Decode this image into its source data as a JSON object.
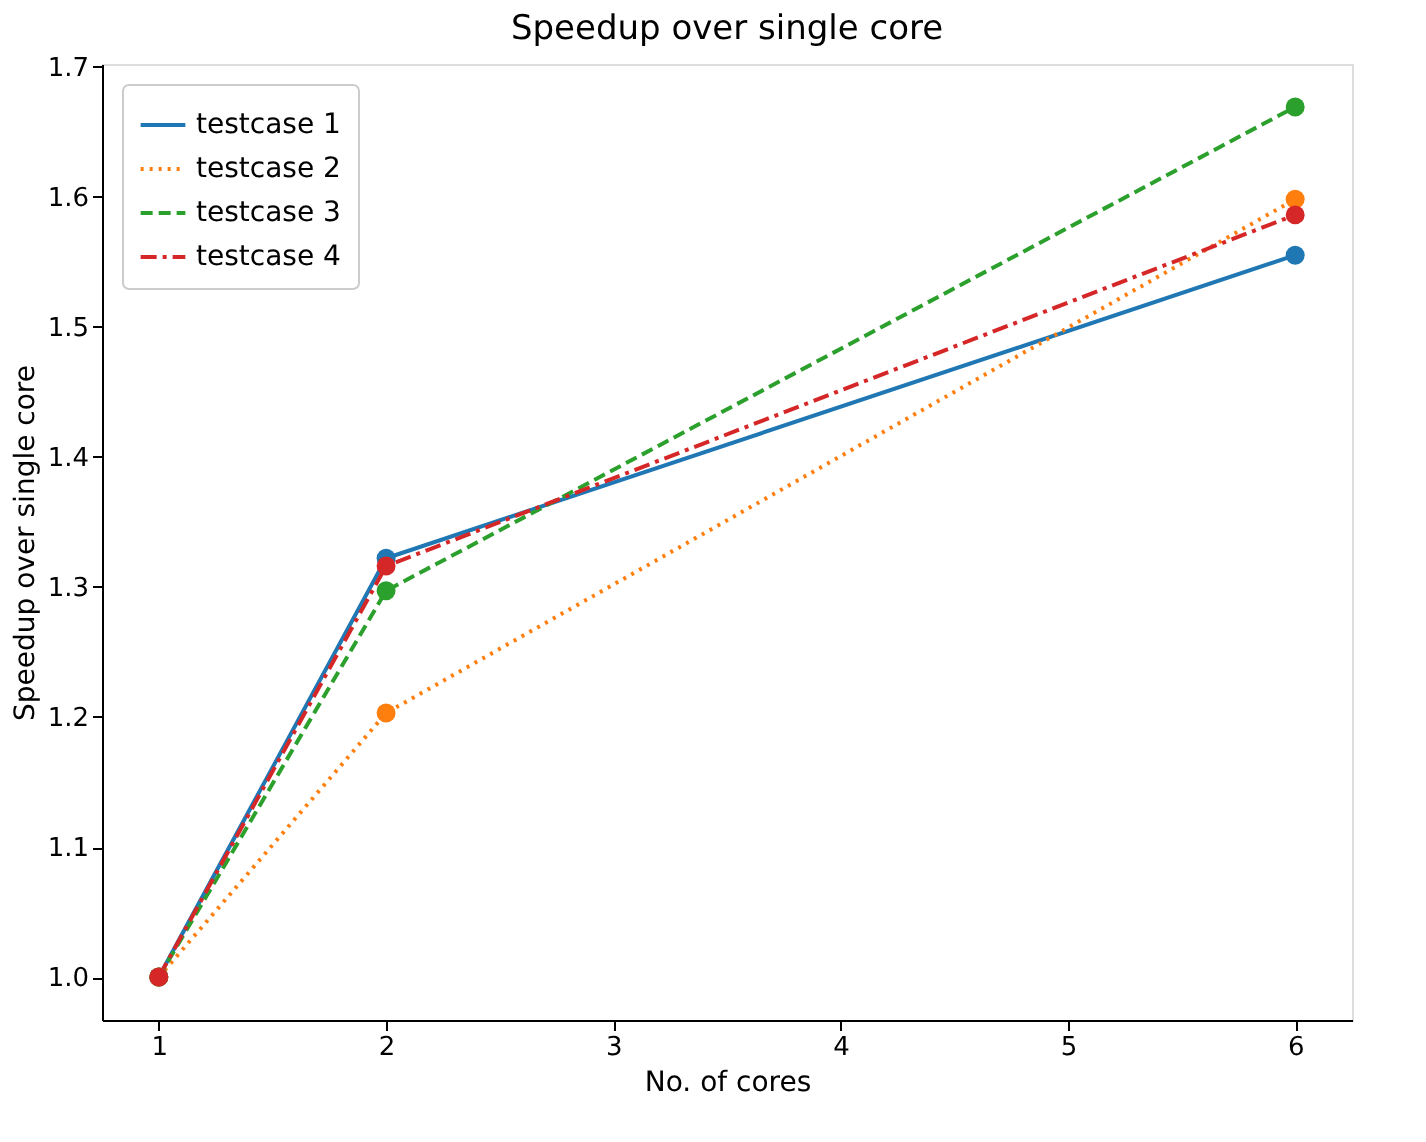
{
  "chart_data": {
    "type": "line",
    "title": "Speedup over single core",
    "xlabel": "No. of cores",
    "ylabel": "Speedup over single core",
    "x": [
      1,
      2,
      6
    ],
    "series": [
      {
        "name": "testcase 1",
        "color": "#1f77b4",
        "line_style": "solid",
        "values": [
          1.0,
          1.322,
          1.555
        ]
      },
      {
        "name": "testcase 2",
        "color": "#ff7f0e",
        "line_style": "dotted",
        "values": [
          1.0,
          1.203,
          1.598
        ]
      },
      {
        "name": "testcase 3",
        "color": "#2ca02c",
        "line_style": "dashed",
        "values": [
          1.0,
          1.297,
          1.669
        ]
      },
      {
        "name": "testcase 4",
        "color": "#d62728",
        "line_style": "dashdot",
        "values": [
          1.0,
          1.316,
          1.586
        ]
      }
    ],
    "xlim": [
      0.75,
      6.25
    ],
    "xticks": [
      1,
      2,
      3,
      4,
      5,
      6
    ],
    "ylim": [
      0.967,
      1.702
    ],
    "yticks": [
      {
        "value": 1.0,
        "label": "1.0"
      },
      1.1,
      1.2,
      1.3,
      1.4,
      1.5,
      1.6,
      1.7
    ],
    "marker": "circle",
    "grid": false,
    "legend": "top left"
  }
}
